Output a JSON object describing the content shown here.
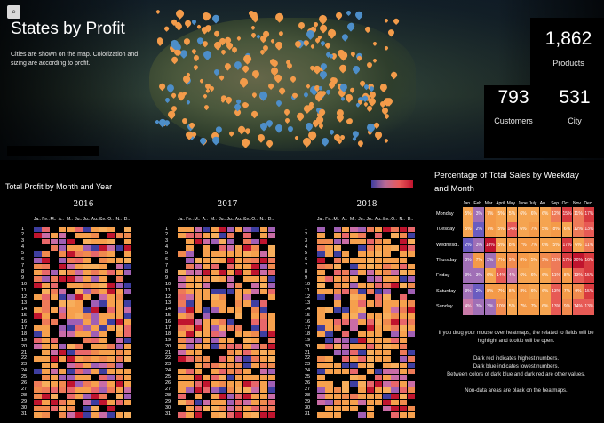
{
  "header": {
    "search_icon": "search-icon",
    "title": "States by Profit",
    "subtitle": "Cities are shown on the map. Colorization and sizing are according to profit."
  },
  "kpis": {
    "products": {
      "value": "1,862",
      "label": "Products"
    },
    "customers": {
      "value": "793",
      "label": "Customers"
    },
    "city": {
      "value": "531",
      "label": "City"
    }
  },
  "colors": {
    "profit_high": "#c0142e",
    "profit_low": "#3e3ea0",
    "profit_mid": "#f6a04d",
    "no_data": "#000000",
    "map_city_profit": "#f39b4a",
    "map_city_loss": "#4d8ec9"
  },
  "profit_heatmap": {
    "title": "Total Profit by Month and Year",
    "years": [
      "2016",
      "2017",
      "2018"
    ],
    "months": [
      "Ja..",
      "Fe..",
      "M..",
      "A..",
      "M..",
      "Ju..",
      "Ju..",
      "Au..",
      "Se..",
      "O..",
      "N..",
      "D.."
    ],
    "days": [
      "1",
      "2",
      "3",
      "4",
      "5",
      "6",
      "7",
      "8",
      "9",
      "10",
      "11",
      "12",
      "13",
      "14",
      "15",
      "16",
      "17",
      "18",
      "19",
      "20",
      "21",
      "22",
      "23",
      "24",
      "25",
      "26",
      "27",
      "28",
      "29",
      "30",
      "31"
    ]
  },
  "weekday_heatmap": {
    "title": "Percentage of Total Sales by Weekday and Month",
    "months": [
      "Jan..",
      "Feb..",
      "Mar..",
      "April",
      "May",
      "June",
      "July",
      "Au..",
      "Sep..",
      "Oct..",
      "Nov..",
      "Dec.."
    ],
    "weekdays": [
      "Monday",
      "Tuesday",
      "Wednesd..",
      "Thursday",
      "Friday",
      "Saturday",
      "Sunday"
    ],
    "values": [
      [
        "5%",
        "3%",
        "7%",
        "5%",
        "5%",
        "6%",
        "6%",
        "6%",
        "12%",
        "15%",
        "11%",
        "17%"
      ],
      [
        "5%",
        "2%",
        "7%",
        "5%",
        "14%",
        "6%",
        "7%",
        "5%",
        "8%",
        "6%",
        "12%",
        "13%"
      ],
      [
        "2%",
        "3%",
        "18%",
        "5%",
        "8%",
        "7%",
        "7%",
        "6%",
        "5%",
        "17%",
        "6%",
        "11%"
      ],
      [
        "3%",
        "7%",
        "3%",
        "7%",
        "9%",
        "8%",
        "5%",
        "9%",
        "11%",
        "17%",
        "20%",
        "16%"
      ],
      [
        "3%",
        "3%",
        "6%",
        "14%",
        "4%",
        "6%",
        "6%",
        "6%",
        "11%",
        "8%",
        "13%",
        "15%"
      ],
      [
        "3%",
        "2%",
        "8%",
        "7%",
        "8%",
        "8%",
        "6%",
        "6%",
        "13%",
        "7%",
        "9%",
        "15%"
      ],
      [
        "4%",
        "3%",
        "3%",
        "10%",
        "5%",
        "7%",
        "7%",
        "6%",
        "13%",
        "9%",
        "14%",
        "13%"
      ]
    ]
  },
  "notes": {
    "hover": "If you drug your mouse over heatmaps, the related to fields will be highlight and tooltip will be open.",
    "dark_red": "Dark red indicates highest numbers.",
    "dark_blue": "Dark blue indicates lowest numbers.",
    "between": "Between colors of dark blue and dark red are other values.",
    "non_data": "Non-data areas are black on the heatmaps."
  }
}
